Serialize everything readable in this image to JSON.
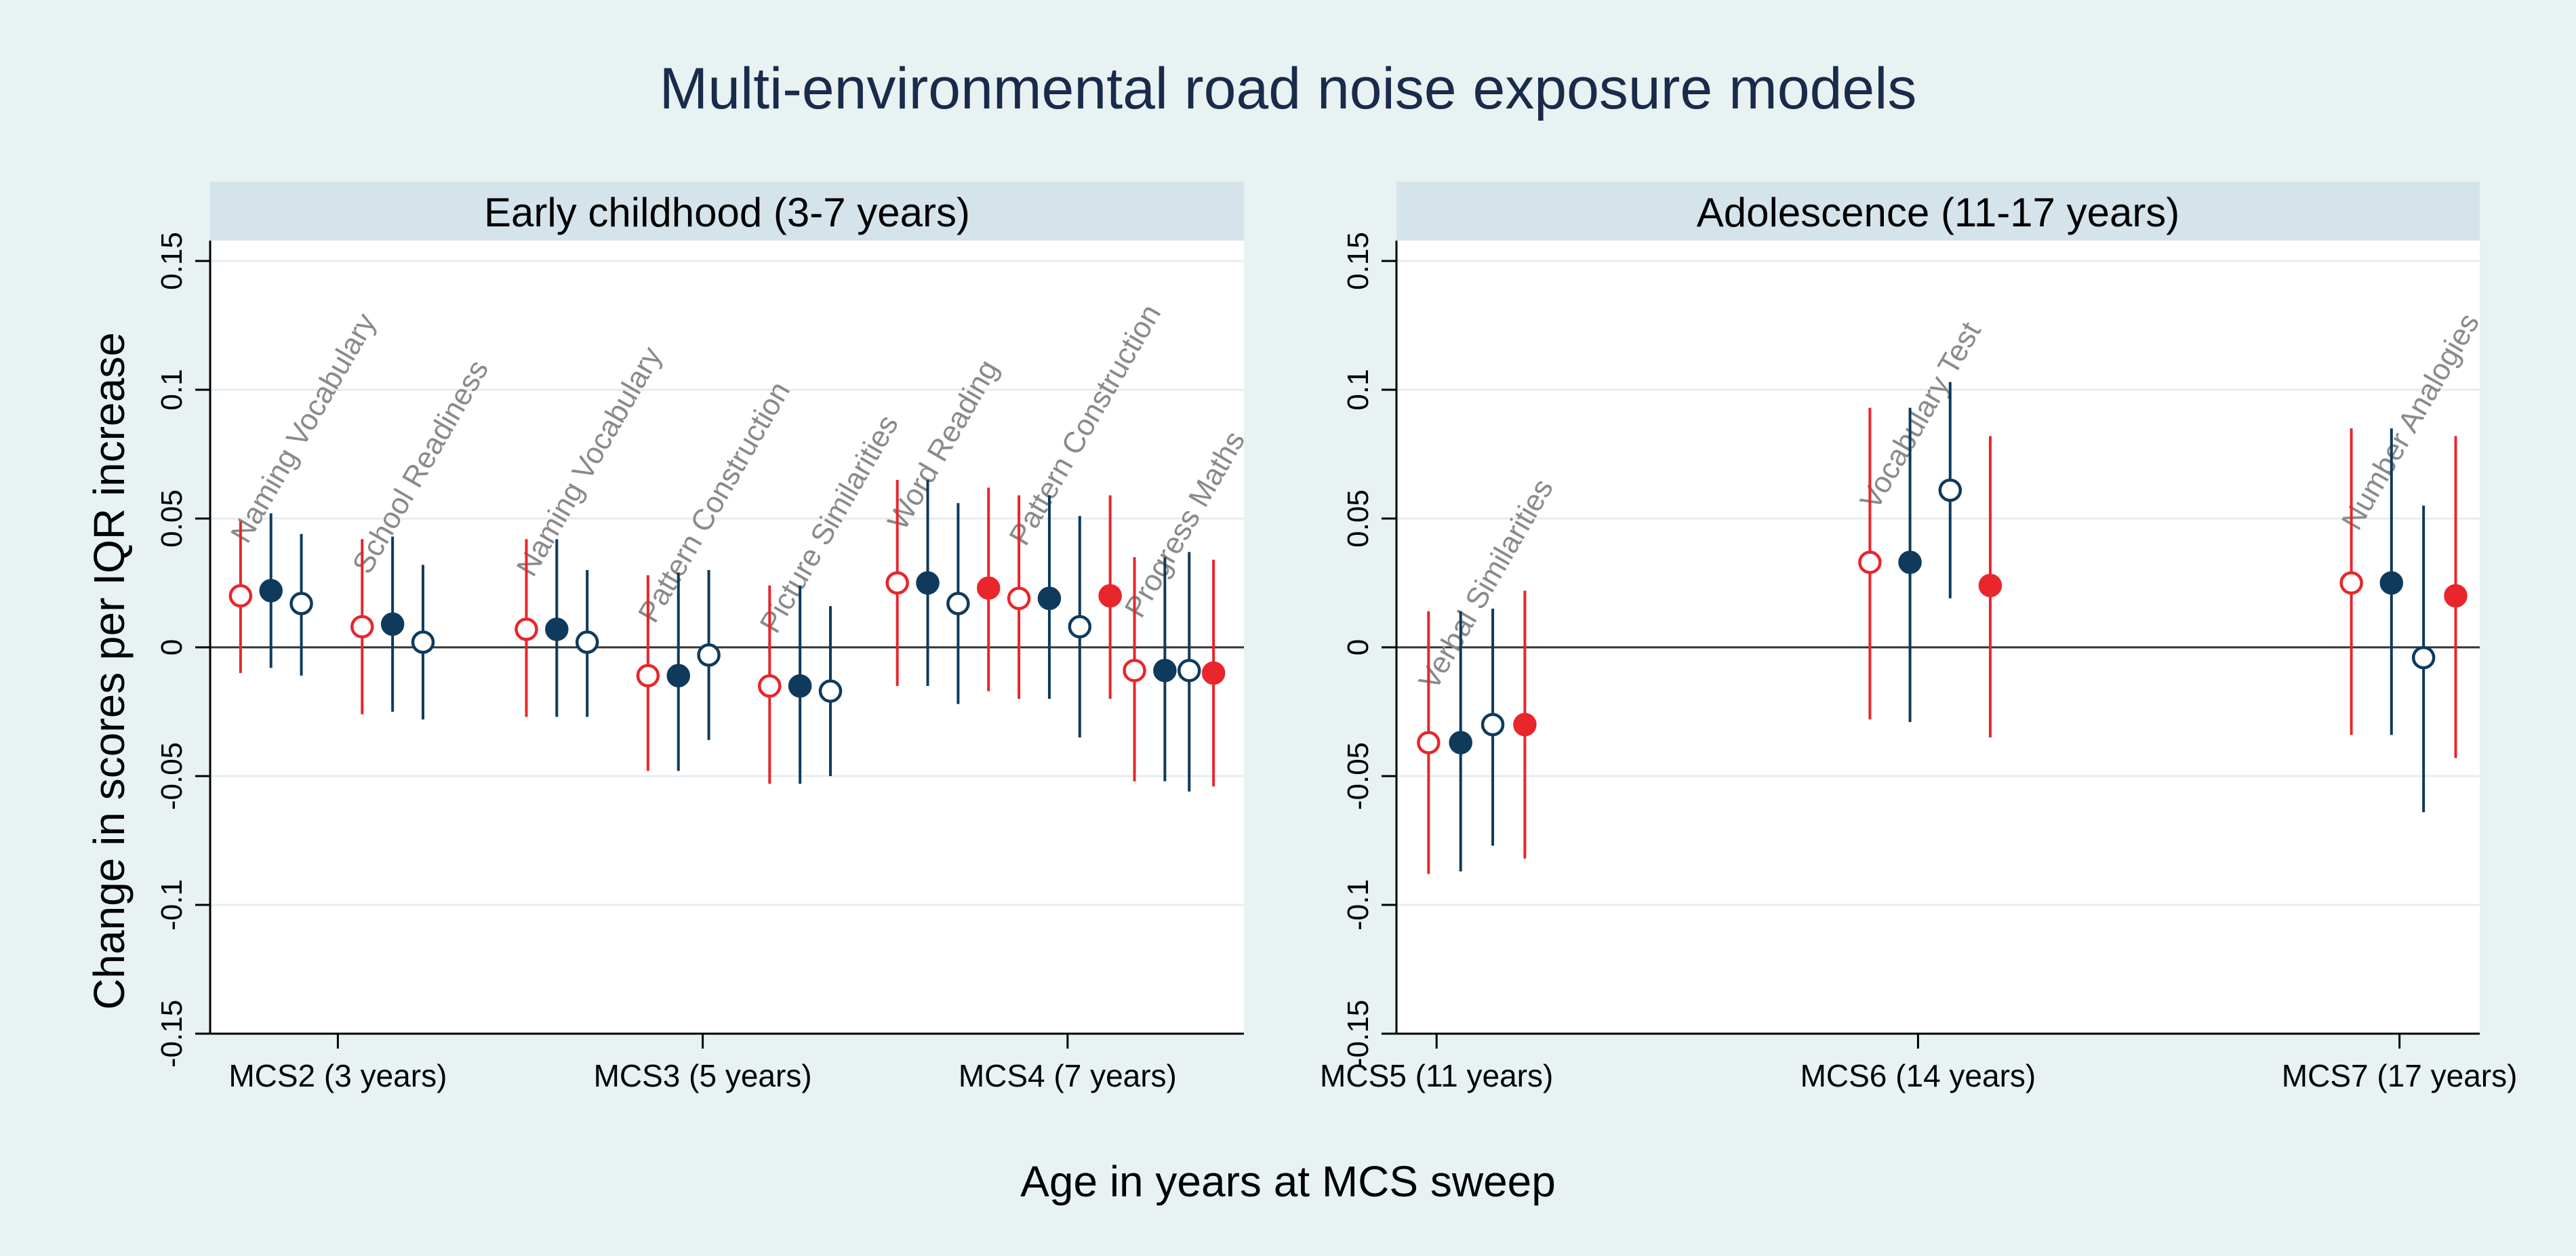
{
  "title": "Multi-environmental road noise exposure models",
  "xlabel": "Age in years at MCS sweep",
  "ylabel": "Change in scores per IQR increase",
  "colors": {
    "outer_bg": "#e8f2f2",
    "panel_header_bg": "#d5e4ea",
    "plot_bg": "#ffffff",
    "grid": "#e4eef0",
    "red": "#e8262b",
    "navy": "#0f3a5c",
    "axis": "#000000",
    "label_gray": "#8a8a8a"
  },
  "chart_data": [
    {
      "panel": "Early childhood (3-7 years)",
      "type": "scatter",
      "ylim": [
        -0.15,
        0.15
      ],
      "yticks": [
        -0.15,
        -0.1,
        -0.05,
        0,
        0.05,
        0.1,
        0.15
      ],
      "ytick_labels": [
        "-0.15",
        "-0.1",
        "-0.05",
        "0",
        "0.05",
        "0.1",
        "0.15"
      ],
      "xticks": [
        {
          "label": "MCS2 (3 years)",
          "pos": 1.0
        },
        {
          "label": "MCS3 (5 years)",
          "pos": 4.0
        },
        {
          "label": "MCS4 (7 years)",
          "pos": 7.0
        }
      ],
      "xlim": [
        -0.05,
        8.45
      ],
      "groups": [
        {
          "label": "Naming Vocabulary",
          "points": [
            {
              "x": 0.2,
              "y": 0.02,
              "lo": -0.01,
              "hi": 0.049,
              "style": "red-hollow"
            },
            {
              "x": 0.45,
              "y": 0.022,
              "lo": -0.008,
              "hi": 0.052,
              "style": "navy-filled"
            },
            {
              "x": 0.7,
              "y": 0.017,
              "lo": -0.011,
              "hi": 0.044,
              "style": "navy-hollow"
            }
          ]
        },
        {
          "label": "School Readiness",
          "points": [
            {
              "x": 1.2,
              "y": 0.008,
              "lo": -0.026,
              "hi": 0.042,
              "style": "red-hollow"
            },
            {
              "x": 1.45,
              "y": 0.009,
              "lo": -0.025,
              "hi": 0.043,
              "style": "navy-filled"
            },
            {
              "x": 1.7,
              "y": 0.002,
              "lo": -0.028,
              "hi": 0.032,
              "style": "navy-hollow"
            }
          ]
        },
        {
          "label": "Naming Vocabulary",
          "points": [
            {
              "x": 2.55,
              "y": 0.007,
              "lo": -0.027,
              "hi": 0.042,
              "style": "red-hollow"
            },
            {
              "x": 2.8,
              "y": 0.007,
              "lo": -0.027,
              "hi": 0.042,
              "style": "navy-filled"
            },
            {
              "x": 3.05,
              "y": 0.002,
              "lo": -0.027,
              "hi": 0.03,
              "style": "navy-hollow"
            }
          ]
        },
        {
          "label": "Pattern Construction",
          "points": [
            {
              "x": 3.55,
              "y": -0.011,
              "lo": -0.048,
              "hi": 0.028,
              "style": "red-hollow"
            },
            {
              "x": 3.8,
              "y": -0.011,
              "lo": -0.048,
              "hi": 0.029,
              "style": "navy-filled"
            },
            {
              "x": 4.05,
              "y": -0.003,
              "lo": -0.036,
              "hi": 0.03,
              "style": "navy-hollow"
            }
          ]
        },
        {
          "label": "Picture Similarities",
          "points": [
            {
              "x": 4.55,
              "y": -0.015,
              "lo": -0.053,
              "hi": 0.024,
              "style": "red-hollow"
            },
            {
              "x": 4.8,
              "y": -0.015,
              "lo": -0.053,
              "hi": 0.024,
              "style": "navy-filled"
            },
            {
              "x": 5.05,
              "y": -0.017,
              "lo": -0.05,
              "hi": 0.016,
              "style": "navy-hollow"
            }
          ]
        },
        {
          "label": "Word Reading",
          "points": [
            {
              "x": 5.6,
              "y": 0.025,
              "lo": -0.015,
              "hi": 0.065,
              "style": "red-hollow"
            },
            {
              "x": 5.85,
              "y": 0.025,
              "lo": -0.015,
              "hi": 0.065,
              "style": "navy-filled"
            },
            {
              "x": 6.1,
              "y": 0.017,
              "lo": -0.022,
              "hi": 0.056,
              "style": "navy-hollow"
            },
            {
              "x": 6.35,
              "y": 0.023,
              "lo": -0.017,
              "hi": 0.062,
              "style": "red-filled"
            }
          ]
        },
        {
          "label": "Pattern Construction",
          "points": [
            {
              "x": 6.6,
              "y": 0.019,
              "lo": -0.02,
              "hi": 0.059,
              "style": "red-hollow"
            },
            {
              "x": 6.85,
              "y": 0.019,
              "lo": -0.02,
              "hi": 0.059,
              "style": "navy-filled"
            },
            {
              "x": 7.1,
              "y": 0.008,
              "lo": -0.035,
              "hi": 0.051,
              "style": "navy-hollow"
            },
            {
              "x": 7.35,
              "y": 0.02,
              "lo": -0.02,
              "hi": 0.059,
              "style": "red-filled"
            }
          ]
        },
        {
          "label": "Progress Maths",
          "points": [
            {
              "x": 7.55,
              "y": -0.009,
              "lo": -0.052,
              "hi": 0.035,
              "style": "red-hollow"
            },
            {
              "x": 7.8,
              "y": -0.009,
              "lo": -0.052,
              "hi": 0.035,
              "style": "navy-filled"
            },
            {
              "x": 8.0,
              "y": -0.009,
              "lo": -0.056,
              "hi": 0.037,
              "style": "navy-hollow"
            },
            {
              "x": 8.2,
              "y": -0.01,
              "lo": -0.054,
              "hi": 0.034,
              "style": "red-filled"
            }
          ]
        }
      ]
    },
    {
      "panel": "Adolescence (11-17 years)",
      "type": "scatter",
      "ylim": [
        -0.15,
        0.15
      ],
      "yticks": [
        -0.15,
        -0.1,
        -0.05,
        0,
        0.05,
        0.1,
        0.15
      ],
      "ytick_labels": [
        "-0.15",
        "-0.1",
        "-0.05",
        "0",
        "0.05",
        "0.1",
        "0.15"
      ],
      "xticks": [
        {
          "label": "MCS5 (11 years)",
          "pos": 1.0
        },
        {
          "label": "MCS6 (14 years)",
          "pos": 4.0
        },
        {
          "label": "MCS7 (17 years)",
          "pos": 7.0
        }
      ],
      "xlim": [
        0.75,
        7.5
      ],
      "groups": [
        {
          "label": "Verbal Similarities",
          "points": [
            {
              "x": 0.95,
              "y": -0.037,
              "lo": -0.088,
              "hi": 0.014,
              "style": "red-hollow"
            },
            {
              "x": 1.15,
              "y": -0.037,
              "lo": -0.087,
              "hi": 0.014,
              "style": "navy-filled"
            },
            {
              "x": 1.35,
              "y": -0.03,
              "lo": -0.077,
              "hi": 0.015,
              "style": "navy-hollow"
            },
            {
              "x": 1.55,
              "y": -0.03,
              "lo": -0.082,
              "hi": 0.022,
              "style": "red-filled"
            }
          ]
        },
        {
          "label": "Vocabulary Test",
          "points": [
            {
              "x": 3.7,
              "y": 0.033,
              "lo": -0.028,
              "hi": 0.093,
              "style": "red-hollow"
            },
            {
              "x": 3.95,
              "y": 0.033,
              "lo": -0.029,
              "hi": 0.093,
              "style": "navy-filled"
            },
            {
              "x": 4.2,
              "y": 0.061,
              "lo": 0.019,
              "hi": 0.103,
              "style": "navy-hollow"
            },
            {
              "x": 4.45,
              "y": 0.024,
              "lo": -0.035,
              "hi": 0.082,
              "style": "red-filled"
            }
          ]
        },
        {
          "label": "Number Analogies",
          "points": [
            {
              "x": 6.7,
              "y": 0.025,
              "lo": -0.034,
              "hi": 0.085,
              "style": "red-hollow"
            },
            {
              "x": 6.95,
              "y": 0.025,
              "lo": -0.034,
              "hi": 0.085,
              "style": "navy-filled"
            },
            {
              "x": 7.15,
              "y": -0.004,
              "lo": -0.064,
              "hi": 0.055,
              "style": "navy-hollow"
            },
            {
              "x": 7.35,
              "y": 0.02,
              "lo": -0.043,
              "hi": 0.082,
              "style": "red-filled"
            }
          ]
        }
      ]
    }
  ]
}
